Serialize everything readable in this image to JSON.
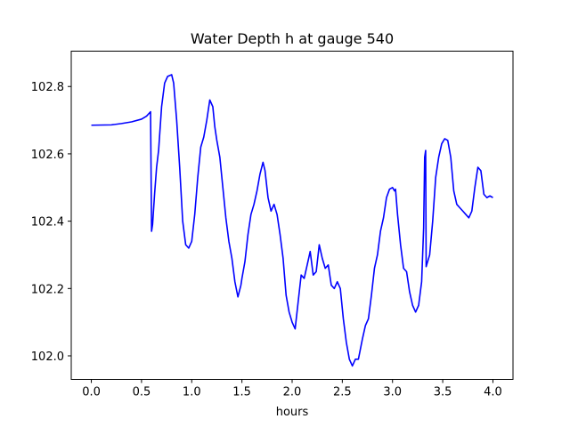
{
  "chart_data": {
    "type": "line",
    "title": "Water Depth h at gauge 540",
    "xlabel": "hours",
    "ylabel": "",
    "xlim": [
      -0.2,
      4.2
    ],
    "ylim": [
      101.93,
      102.905
    ],
    "xticks": [
      0.0,
      0.5,
      1.0,
      1.5,
      2.0,
      2.5,
      3.0,
      3.5,
      4.0
    ],
    "xtick_labels": [
      "0.0",
      "0.5",
      "1.0",
      "1.5",
      "2.0",
      "2.5",
      "3.0",
      "3.5",
      "4.0"
    ],
    "yticks": [
      102.0,
      102.2,
      102.4,
      102.6,
      102.8
    ],
    "ytick_labels": [
      "102.0",
      "102.2",
      "102.4",
      "102.6",
      "102.8"
    ],
    "grid": false,
    "series": [
      {
        "name": "",
        "color": "#0000ff",
        "x": [
          0.0,
          0.2,
          0.3,
          0.4,
          0.5,
          0.55,
          0.59,
          0.6,
          0.61,
          0.63,
          0.65,
          0.67,
          0.7,
          0.73,
          0.76,
          0.8,
          0.82,
          0.85,
          0.88,
          0.91,
          0.94,
          0.97,
          1.0,
          1.03,
          1.06,
          1.09,
          1.12,
          1.15,
          1.18,
          1.21,
          1.23,
          1.25,
          1.28,
          1.31,
          1.34,
          1.37,
          1.4,
          1.43,
          1.46,
          1.49,
          1.5,
          1.53,
          1.56,
          1.59,
          1.62,
          1.65,
          1.68,
          1.71,
          1.73,
          1.76,
          1.79,
          1.82,
          1.85,
          1.88,
          1.91,
          1.94,
          1.97,
          2.0,
          2.03,
          2.06,
          2.09,
          2.12,
          2.15,
          2.18,
          2.21,
          2.24,
          2.27,
          2.3,
          2.33,
          2.36,
          2.39,
          2.42,
          2.45,
          2.48,
          2.51,
          2.54,
          2.57,
          2.6,
          2.63,
          2.66,
          2.7,
          2.73,
          2.76,
          2.79,
          2.82,
          2.85,
          2.88,
          2.91,
          2.94,
          2.97,
          3.0,
          3.02,
          3.03,
          3.05,
          3.08,
          3.11,
          3.14,
          3.17,
          3.2,
          3.23,
          3.26,
          3.29,
          3.31,
          3.32,
          3.33,
          3.335,
          3.34,
          3.37,
          3.4,
          3.43,
          3.46,
          3.49,
          3.52,
          3.55,
          3.58,
          3.61,
          3.64,
          3.67,
          3.7,
          3.73,
          3.76,
          3.79,
          3.82,
          3.85,
          3.88,
          3.91,
          3.94,
          3.97,
          4.0
        ],
        "y": [
          102.685,
          102.686,
          102.69,
          102.695,
          102.703,
          102.712,
          102.725,
          102.37,
          102.39,
          102.48,
          102.56,
          102.61,
          102.74,
          102.81,
          102.83,
          102.835,
          102.81,
          102.7,
          102.56,
          102.4,
          102.33,
          102.32,
          102.34,
          102.42,
          102.53,
          102.62,
          102.65,
          102.7,
          102.76,
          102.74,
          102.68,
          102.64,
          102.59,
          102.5,
          102.41,
          102.34,
          102.29,
          102.22,
          102.175,
          102.21,
          102.23,
          102.28,
          102.36,
          102.42,
          102.45,
          102.49,
          102.54,
          102.575,
          102.55,
          102.47,
          102.43,
          102.45,
          102.42,
          102.36,
          102.29,
          102.18,
          102.13,
          102.1,
          102.08,
          102.16,
          102.24,
          102.23,
          102.27,
          102.31,
          102.24,
          102.25,
          102.33,
          102.29,
          102.26,
          102.27,
          102.21,
          102.2,
          102.22,
          102.2,
          102.11,
          102.04,
          101.99,
          101.97,
          101.99,
          101.99,
          102.05,
          102.09,
          102.11,
          102.18,
          102.26,
          102.3,
          102.37,
          102.41,
          102.47,
          102.495,
          102.5,
          102.49,
          102.495,
          102.42,
          102.33,
          102.26,
          102.25,
          102.19,
          102.15,
          102.13,
          102.15,
          102.22,
          102.38,
          102.59,
          102.61,
          102.265,
          102.27,
          102.3,
          102.4,
          102.53,
          102.59,
          102.63,
          102.645,
          102.64,
          102.59,
          102.49,
          102.45,
          102.44,
          102.43,
          102.42,
          102.41,
          102.43,
          102.5,
          102.56,
          102.55,
          102.48,
          102.47,
          102.475,
          102.47
        ]
      }
    ]
  }
}
